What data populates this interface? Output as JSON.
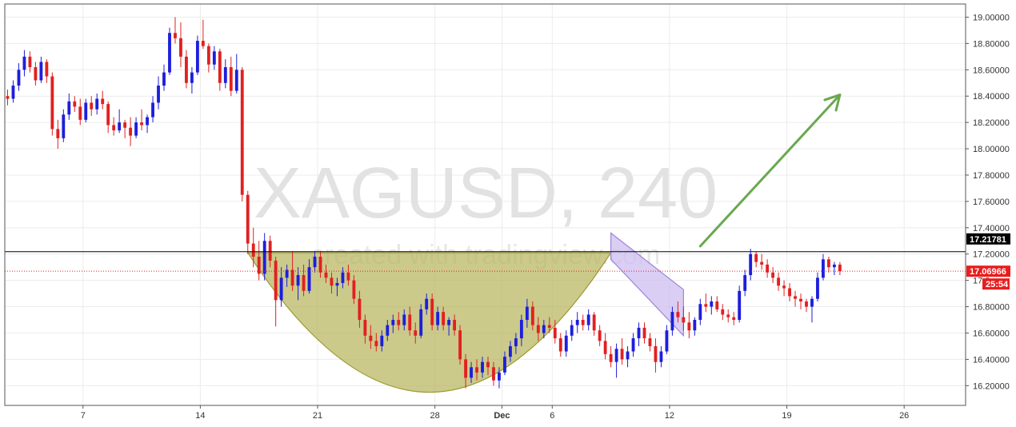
{
  "chart_data": {
    "type": "candlestick",
    "symbol_watermark": "XAGUSD, 240",
    "credit_watermark": "created with tradingview.com",
    "ylim": [
      16.05,
      19.1
    ],
    "y_ticks": [
      {
        "value": 19.0,
        "label": "19.00000"
      },
      {
        "value": 18.8,
        "label": "18.80000"
      },
      {
        "value": 18.6,
        "label": "18.60000"
      },
      {
        "value": 18.4,
        "label": "18.40000"
      },
      {
        "value": 18.2,
        "label": "18.20000"
      },
      {
        "value": 18.0,
        "label": "18.00000"
      },
      {
        "value": 17.8,
        "label": "17.80000"
      },
      {
        "value": 17.6,
        "label": "17.60000"
      },
      {
        "value": 17.4,
        "label": "17.40000"
      },
      {
        "value": 17.2,
        "label": "17.20000"
      },
      {
        "value": 17.0,
        "label": "17.0"
      },
      {
        "value": 16.8,
        "label": "16.80000"
      },
      {
        "value": 16.6,
        "label": "16.60000"
      },
      {
        "value": 16.4,
        "label": "16.40000"
      },
      {
        "value": 16.2,
        "label": "16.20000"
      }
    ],
    "x_ticks": [
      {
        "bar": 13.5,
        "label": "7"
      },
      {
        "bar": 34.5,
        "label": "14"
      },
      {
        "bar": 55.5,
        "label": "21"
      },
      {
        "bar": 76.5,
        "label": "28"
      },
      {
        "bar": 88.5,
        "label": "Dec"
      },
      {
        "bar": 97.5,
        "label": "6"
      },
      {
        "bar": 118.5,
        "label": "12"
      },
      {
        "bar": 139.5,
        "label": "19"
      },
      {
        "bar": 160.5,
        "label": "26"
      }
    ],
    "x_range": [
      -0.5,
      171.5
    ],
    "resistance_level": {
      "value": 17.21781,
      "label": "17.21781",
      "color": "#000000"
    },
    "current_price": {
      "value": 17.06966,
      "label": "17.06966",
      "color": "#e91d1d"
    },
    "countdown": {
      "label": "25:54"
    },
    "colors": {
      "up": "#1e1edc",
      "down": "#e22020",
      "cup_fill": "#b5b35a",
      "cup_stroke": "#9c9a30",
      "channel_fill": "#cdbdf0",
      "channel_stroke": "#9d86d8",
      "arrow": "#6aa84f",
      "grid": "#ececec"
    },
    "patterns": {
      "cup": {
        "start_bar": 43,
        "end_bar": 108,
        "top_value": 17.21,
        "bottom_value": 16.15
      },
      "channel": {
        "upper": [
          [
            108,
            17.36
          ],
          [
            121,
            16.93
          ]
        ],
        "lower": [
          [
            108,
            17.16
          ],
          [
            121,
            16.58
          ]
        ]
      },
      "arrow": {
        "from": [
          124,
          17.26
        ],
        "to": [
          149,
          18.41
        ]
      }
    },
    "candles": [
      [
        18.4,
        18.45,
        18.33,
        18.38
      ],
      [
        18.38,
        18.52,
        18.35,
        18.48
      ],
      [
        18.48,
        18.65,
        18.44,
        18.6
      ],
      [
        18.6,
        18.75,
        18.55,
        18.7
      ],
      [
        18.7,
        18.74,
        18.58,
        18.62
      ],
      [
        18.62,
        18.66,
        18.48,
        18.52
      ],
      [
        18.52,
        18.7,
        18.5,
        18.66
      ],
      [
        18.66,
        18.68,
        18.5,
        18.55
      ],
      [
        18.55,
        18.58,
        18.1,
        18.15
      ],
      [
        18.15,
        18.22,
        18.0,
        18.08
      ],
      [
        18.08,
        18.3,
        18.05,
        18.26
      ],
      [
        18.26,
        18.42,
        18.22,
        18.36
      ],
      [
        18.36,
        18.4,
        18.28,
        18.32
      ],
      [
        18.32,
        18.38,
        18.18,
        18.22
      ],
      [
        18.22,
        18.38,
        18.2,
        18.35
      ],
      [
        18.35,
        18.4,
        18.25,
        18.3
      ],
      [
        18.3,
        18.42,
        18.26,
        18.38
      ],
      [
        18.38,
        18.44,
        18.3,
        18.34
      ],
      [
        18.34,
        18.36,
        18.12,
        18.18
      ],
      [
        18.18,
        18.24,
        18.1,
        18.14
      ],
      [
        18.14,
        18.3,
        18.12,
        18.2
      ],
      [
        18.2,
        18.22,
        18.08,
        18.16
      ],
      [
        18.16,
        18.24,
        18.02,
        18.1
      ],
      [
        18.1,
        18.24,
        18.08,
        18.2
      ],
      [
        18.2,
        18.3,
        18.14,
        18.18
      ],
      [
        18.18,
        18.26,
        18.12,
        18.24
      ],
      [
        18.24,
        18.4,
        18.2,
        18.35
      ],
      [
        18.35,
        18.55,
        18.3,
        18.48
      ],
      [
        18.48,
        18.64,
        18.44,
        18.58
      ],
      [
        18.58,
        18.92,
        18.56,
        18.88
      ],
      [
        18.88,
        19.0,
        18.8,
        18.84
      ],
      [
        18.84,
        18.96,
        18.62,
        18.7
      ],
      [
        18.7,
        18.75,
        18.46,
        18.5
      ],
      [
        18.5,
        18.62,
        18.42,
        18.58
      ],
      [
        18.58,
        18.86,
        18.56,
        18.82
      ],
      [
        18.82,
        18.98,
        18.76,
        18.78
      ],
      [
        18.78,
        18.8,
        18.58,
        18.64
      ],
      [
        18.64,
        18.78,
        18.6,
        18.74
      ],
      [
        18.74,
        18.76,
        18.44,
        18.5
      ],
      [
        18.5,
        18.68,
        18.46,
        18.62
      ],
      [
        18.62,
        18.7,
        18.4,
        18.44
      ],
      [
        18.44,
        18.72,
        18.42,
        18.6
      ],
      [
        18.6,
        18.62,
        17.6,
        17.65
      ],
      [
        17.65,
        17.68,
        17.2,
        17.28
      ],
      [
        17.28,
        17.4,
        17.1,
        17.18
      ],
      [
        17.18,
        17.3,
        17.0,
        17.05
      ],
      [
        17.05,
        17.36,
        17.0,
        17.3
      ],
      [
        17.3,
        17.34,
        17.1,
        17.15
      ],
      [
        17.15,
        17.18,
        16.65,
        16.85
      ],
      [
        16.85,
        17.1,
        16.8,
        17.02
      ],
      [
        17.02,
        17.12,
        16.95,
        17.08
      ],
      [
        17.08,
        17.22,
        16.92,
        16.96
      ],
      [
        16.96,
        17.1,
        16.85,
        17.04
      ],
      [
        17.04,
        17.12,
        16.88,
        16.92
      ],
      [
        16.92,
        17.16,
        16.9,
        17.1
      ],
      [
        17.1,
        17.22,
        17.06,
        17.18
      ],
      [
        17.18,
        17.22,
        17.02,
        17.06
      ],
      [
        17.06,
        17.12,
        16.98,
        17.02
      ],
      [
        17.02,
        17.06,
        16.9,
        16.96
      ],
      [
        16.96,
        17.02,
        16.88,
        16.98
      ],
      [
        16.98,
        17.1,
        16.94,
        17.06
      ],
      [
        17.06,
        17.12,
        16.96,
        17.0
      ],
      [
        17.0,
        17.04,
        16.82,
        16.86
      ],
      [
        16.86,
        16.92,
        16.64,
        16.7
      ],
      [
        16.7,
        16.74,
        16.52,
        16.58
      ],
      [
        16.58,
        16.66,
        16.48,
        16.54
      ],
      [
        16.54,
        16.6,
        16.46,
        16.5
      ],
      [
        16.5,
        16.62,
        16.46,
        16.58
      ],
      [
        16.58,
        16.7,
        16.54,
        16.66
      ],
      [
        16.66,
        16.74,
        16.6,
        16.7
      ],
      [
        16.7,
        16.76,
        16.62,
        16.66
      ],
      [
        16.66,
        16.78,
        16.62,
        16.74
      ],
      [
        16.74,
        16.8,
        16.58,
        16.62
      ],
      [
        16.62,
        16.68,
        16.52,
        16.58
      ],
      [
        16.58,
        16.82,
        16.56,
        16.78
      ],
      [
        16.78,
        16.9,
        16.74,
        16.86
      ],
      [
        16.86,
        16.9,
        16.62,
        16.66
      ],
      [
        16.66,
        16.8,
        16.62,
        16.76
      ],
      [
        16.76,
        16.8,
        16.62,
        16.66
      ],
      [
        16.66,
        16.72,
        16.58,
        16.7
      ],
      [
        16.7,
        16.74,
        16.58,
        16.62
      ],
      [
        16.62,
        16.66,
        16.36,
        16.4
      ],
      [
        16.4,
        16.44,
        16.18,
        16.26
      ],
      [
        16.26,
        16.38,
        16.22,
        16.34
      ],
      [
        16.34,
        16.4,
        16.24,
        16.3
      ],
      [
        16.3,
        16.42,
        16.26,
        16.38
      ],
      [
        16.38,
        16.42,
        16.28,
        16.34
      ],
      [
        16.34,
        16.38,
        16.2,
        16.24
      ],
      [
        16.24,
        16.34,
        16.18,
        16.3
      ],
      [
        16.3,
        16.46,
        16.28,
        16.42
      ],
      [
        16.42,
        16.54,
        16.38,
        16.5
      ],
      [
        16.5,
        16.6,
        16.44,
        16.56
      ],
      [
        16.56,
        16.74,
        16.5,
        16.7
      ],
      [
        16.7,
        16.86,
        16.64,
        16.8
      ],
      [
        16.8,
        16.84,
        16.62,
        16.66
      ],
      [
        16.66,
        16.72,
        16.54,
        16.6
      ],
      [
        16.6,
        16.7,
        16.56,
        16.66
      ],
      [
        16.66,
        16.72,
        16.6,
        16.64
      ],
      [
        16.64,
        16.7,
        16.52,
        16.56
      ],
      [
        16.56,
        16.6,
        16.42,
        16.46
      ],
      [
        16.46,
        16.62,
        16.42,
        16.58
      ],
      [
        16.58,
        16.7,
        16.54,
        16.66
      ],
      [
        16.66,
        16.76,
        16.6,
        16.7
      ],
      [
        16.7,
        16.74,
        16.62,
        16.66
      ],
      [
        16.66,
        16.78,
        16.62,
        16.74
      ],
      [
        16.74,
        16.76,
        16.58,
        16.62
      ],
      [
        16.62,
        16.66,
        16.5,
        16.54
      ],
      [
        16.54,
        16.6,
        16.4,
        16.44
      ],
      [
        16.44,
        16.5,
        16.34,
        16.38
      ],
      [
        16.38,
        16.52,
        16.26,
        16.48
      ],
      [
        16.48,
        16.56,
        16.36,
        16.4
      ],
      [
        16.4,
        16.5,
        16.34,
        16.46
      ],
      [
        16.46,
        16.6,
        16.42,
        16.56
      ],
      [
        16.56,
        16.68,
        16.5,
        16.64
      ],
      [
        16.64,
        16.68,
        16.52,
        16.56
      ],
      [
        16.56,
        16.6,
        16.46,
        16.5
      ],
      [
        16.5,
        16.56,
        16.3,
        16.38
      ],
      [
        16.38,
        16.5,
        16.34,
        16.46
      ],
      [
        16.46,
        16.66,
        16.44,
        16.62
      ],
      [
        16.62,
        16.8,
        16.58,
        16.76
      ],
      [
        16.76,
        16.84,
        16.68,
        16.72
      ],
      [
        16.72,
        16.8,
        16.62,
        16.68
      ],
      [
        16.68,
        16.76,
        16.56,
        16.62
      ],
      [
        16.62,
        16.72,
        16.58,
        16.7
      ],
      [
        16.7,
        16.86,
        16.66,
        16.82
      ],
      [
        16.82,
        16.9,
        16.76,
        16.8
      ],
      [
        16.8,
        16.88,
        16.74,
        16.84
      ],
      [
        16.84,
        16.88,
        16.76,
        16.78
      ],
      [
        16.78,
        16.82,
        16.7,
        16.74
      ],
      [
        16.74,
        16.78,
        16.68,
        16.72
      ],
      [
        16.72,
        16.76,
        16.66,
        16.7
      ],
      [
        16.7,
        16.96,
        16.68,
        16.92
      ],
      [
        16.92,
        17.08,
        16.88,
        17.04
      ],
      [
        17.04,
        17.24,
        17.0,
        17.2
      ],
      [
        17.2,
        17.22,
        17.1,
        17.14
      ],
      [
        17.14,
        17.2,
        17.08,
        17.12
      ],
      [
        17.12,
        17.16,
        17.02,
        17.06
      ],
      [
        17.06,
        17.1,
        16.98,
        17.02
      ],
      [
        17.02,
        17.06,
        16.92,
        16.96
      ],
      [
        16.96,
        17.0,
        16.88,
        16.94
      ],
      [
        16.94,
        16.98,
        16.84,
        16.88
      ],
      [
        16.88,
        16.92,
        16.8,
        16.86
      ],
      [
        16.86,
        16.9,
        16.78,
        16.84
      ],
      [
        16.84,
        16.86,
        16.76,
        16.8
      ],
      [
        16.8,
        16.88,
        16.68,
        16.86
      ],
      [
        16.86,
        17.06,
        16.84,
        17.02
      ],
      [
        17.02,
        17.2,
        17.0,
        17.16
      ],
      [
        17.16,
        17.18,
        17.06,
        17.1
      ],
      [
        17.1,
        17.14,
        17.04,
        17.12
      ],
      [
        17.12,
        17.14,
        17.04,
        17.07
      ]
    ]
  }
}
